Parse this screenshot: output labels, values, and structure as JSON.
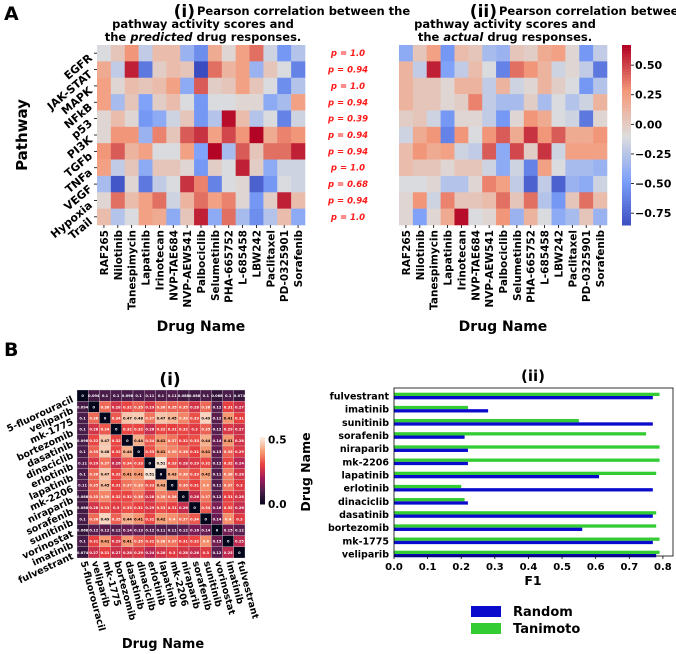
{
  "panel_a": {
    "label": "A",
    "colors": {
      "cmap": [
        "#3b4cc0",
        "#7b9ff9",
        "#dddddd",
        "#f49a7b",
        "#b40426"
      ]
    },
    "chart_data": [
      {
        "type": "heatmap",
        "numeral": "(i)",
        "title_lines": [
          "Pearson correlation between the",
          "pathway activity scores and"
        ],
        "title_line3": {
          "pre": "the ",
          "em": "predicted",
          "post": " drug responses."
        },
        "xlabel": "Drug Name",
        "ylabel": "Pathway",
        "rows": [
          "EGFR",
          "JAK-STAT",
          "MAPK",
          "NFkB",
          "p53",
          "PI3K",
          "TGFb",
          "TNFa",
          "VEGF",
          "Hypoxia",
          "Trail"
        ],
        "cols": [
          "RAF265",
          "Nilotinib",
          "Tanespimycin",
          "Lapatinib",
          "Irinotecan",
          "NVP-TAE684",
          "NVP-AEW541",
          "Palbociclib",
          "Selumetinib",
          "PHA-665752",
          "L-685458",
          "LBW242",
          "Paclitaxel",
          "PD-0325901",
          "Sorafenib"
        ],
        "values": [
          [
            -0.1,
            0.05,
            0.3,
            -0.2,
            0.1,
            0.1,
            -0.35,
            -0.55,
            0.2,
            -0.05,
            0.25,
            0.4,
            -0.15,
            -0.5,
            -0.25
          ],
          [
            0.2,
            -0.2,
            0.6,
            -0.65,
            0,
            0.1,
            0.05,
            -0.85,
            0.4,
            0.15,
            0.25,
            -0.35,
            0.05,
            -0.1,
            -0.6
          ],
          [
            0.25,
            -0.05,
            0.1,
            0.05,
            0.1,
            0.25,
            -0.4,
            0.45,
            0,
            0.05,
            0.25,
            0.05,
            -0.1,
            -0.55,
            -0.25
          ],
          [
            0.25,
            -0.3,
            0.05,
            -0.45,
            0,
            0.1,
            -0.1,
            -0.5,
            -0.1,
            -0.1,
            -0.05,
            -0.05,
            -0.4,
            -0.3,
            0.25
          ],
          [
            -0.05,
            0.1,
            -0.05,
            -0.5,
            -0.4,
            -0.15,
            0.05,
            -0.5,
            -0.25,
            0.65,
            0.1,
            -0.25,
            -0.1,
            -0.6,
            -0.15
          ],
          [
            -0.05,
            0.3,
            0.3,
            -0.35,
            0.35,
            0.05,
            0.45,
            0.55,
            0.25,
            0.5,
            0.3,
            0.75,
            0.2,
            0.35,
            0.3
          ],
          [
            0.3,
            0.45,
            0.15,
            0.25,
            -0.1,
            -0.1,
            0.25,
            -0.45,
            0.75,
            -0.3,
            0.45,
            0.05,
            0.4,
            0.4,
            0.6
          ],
          [
            0.25,
            -0.2,
            0.05,
            -0.4,
            0.05,
            0.05,
            -0.05,
            -0.5,
            0,
            -0.1,
            0.6,
            0,
            -0.4,
            -0.15,
            -0.15
          ],
          [
            -0.3,
            -0.8,
            -0.05,
            -0.65,
            -0.2,
            -0.1,
            0.55,
            0.35,
            -0.6,
            -0.1,
            -0.05,
            -0.75,
            -0.5,
            -0.1,
            -0.15
          ],
          [
            -0.05,
            0.4,
            0.1,
            0.25,
            0.4,
            -0.15,
            0.15,
            0.4,
            0.25,
            0.35,
            -0.05,
            -0.5,
            0,
            0.6,
            0.1
          ],
          [
            0.1,
            -0.25,
            -0.1,
            0.25,
            0.2,
            -0.4,
            0.05,
            0.6,
            -0.4,
            0.4,
            -0.3,
            -0.55,
            -0.25,
            0.1,
            -0.4
          ]
        ],
        "vmin": -0.85,
        "vmax": 0.67
      },
      {
        "type": "heatmap",
        "numeral": "(ii)",
        "title_lines": [
          "Pearson correlation between the",
          "pathway activity scores and"
        ],
        "title_line3": {
          "pre": "the ",
          "em": "actual",
          "post": " drug responses."
        },
        "xlabel": "Drug Name",
        "rows": [
          "EGFR",
          "JAK-STAT",
          "MAPK",
          "NFkB",
          "p53",
          "PI3K",
          "TGFb",
          "TNFa",
          "VEGF",
          "Hypoxia",
          "Trail"
        ],
        "cols": [
          "RAF265",
          "Nilotinib",
          "Tanespimycin",
          "Lapatinib",
          "Irinotecan",
          "NVP-TAE684",
          "NVP-AEW541",
          "Palbociclib",
          "Selumetinib",
          "PHA-665752",
          "L-685458",
          "LBW242",
          "Paclitaxel",
          "PD-0325901",
          "Sorafenib"
        ],
        "values": [
          [
            -0.4,
            0.05,
            0.25,
            -0.5,
            0.1,
            0.05,
            -0.3,
            -0.35,
            0.05,
            0,
            0.2,
            0.25,
            -0.05,
            -0.5,
            -0.2
          ],
          [
            0.15,
            -0.2,
            0.6,
            -0.45,
            -0.2,
            0.1,
            -0.1,
            -0.6,
            0.4,
            0.3,
            0.15,
            -0.15,
            -0.05,
            -0.2,
            -0.65
          ],
          [
            0.15,
            0.05,
            0.05,
            -0.05,
            0.15,
            0.15,
            -0.2,
            0.15,
            -0.15,
            -0.05,
            0.15,
            0,
            -0.1,
            -0.5,
            -0.25
          ],
          [
            0.15,
            0.05,
            0.05,
            -0.05,
            0,
            0.35,
            -0.2,
            -0.3,
            -0.3,
            0,
            -0.3,
            -0.1,
            -0.25,
            -0.15,
            0.15
          ],
          [
            0,
            0.05,
            -0.15,
            -0.5,
            -0.05,
            -0.05,
            -0.2,
            -0.5,
            -0.05,
            0.3,
            0.2,
            -0.1,
            -0.15,
            -0.65,
            -0.05
          ],
          [
            -0.15,
            0.2,
            0.3,
            -0.6,
            0.3,
            -0.1,
            0.3,
            0.45,
            0.2,
            0.55,
            0.3,
            0.45,
            0.2,
            0.2,
            0.3
          ],
          [
            0.1,
            0.3,
            0.2,
            0.25,
            -0.15,
            -0.2,
            0.45,
            -0.4,
            0.5,
            0,
            0.55,
            -0.15,
            0.25,
            0.25,
            0.25
          ],
          [
            0.1,
            0.05,
            0.05,
            -0.05,
            0.05,
            0.05,
            -0.15,
            -0.4,
            -0.15,
            -0.6,
            0.25,
            -0.1,
            -0.3,
            -0.3,
            -0.35
          ],
          [
            -0.1,
            -0.1,
            -0.05,
            -0.25,
            -0.25,
            -0.05,
            0.35,
            0.25,
            -0.2,
            -0.75,
            -0.2,
            -0.75,
            -0.35,
            -0.4,
            -0.15
          ],
          [
            -0.05,
            0.3,
            -0.15,
            0.35,
            0.05,
            0.05,
            0.1,
            0.4,
            0.05,
            0.4,
            -0.25,
            -0.5,
            0.05,
            0.4,
            0.1
          ],
          [
            -0.05,
            -0.45,
            -0.05,
            0.2,
            0.65,
            -0.1,
            -0.05,
            0.3,
            -0.35,
            0.15,
            -0.1,
            -0.4,
            -0.3,
            0.05,
            -0.35
          ]
        ],
        "vmin": -0.85,
        "vmax": 0.67,
        "colorbar_ticks": [
          0.5,
          0.25,
          0.0,
          -0.25,
          -0.5,
          -0.75
        ],
        "colorbar_tick_labels": [
          "0.50",
          "0.25",
          "0.00",
          "−0.25",
          "−0.50",
          "−0.75"
        ]
      }
    ],
    "p_values": [
      "p = 1.0",
      "p = 0.94",
      "p = 1.0",
      "p = 0.94",
      "p = 0.39",
      "p = 0.94",
      "p = 0.94",
      "p = 1.0",
      "p = 0.68",
      "p = 0.94",
      "p = 1.0"
    ]
  },
  "panel_b": {
    "label": "B",
    "chart_data": [
      {
        "type": "heatmap",
        "title": "(i)",
        "xlabel": "Drug Name",
        "drugs": [
          "5-fluorouracil",
          "veliparib",
          "mk-1775",
          "bortezomib",
          "dasatinib",
          "dinaciclib",
          "erlotinib",
          "lapatinib",
          "mk-2206",
          "niraparib",
          "sorafenib",
          "sunitinib",
          "vorinostat",
          "imatinib",
          "fulvestrant"
        ],
        "values": [
          [
            0,
            0.094,
            0.1,
            0.1,
            0.098,
            0.1,
            0.11,
            0.1,
            0.11,
            0.088,
            0.088,
            0.1,
            0.068,
            0.1,
            0.074
          ],
          [
            0.094,
            0,
            0.36,
            0.28,
            0.32,
            0.35,
            0.29,
            0.36,
            0.35,
            0.35,
            0.28,
            0.36,
            0.12,
            0.31,
            0.27
          ],
          [
            0.1,
            0.36,
            0,
            0.34,
            0.47,
            0.48,
            0.37,
            0.47,
            0.45,
            0.39,
            0.33,
            0.49,
            0.12,
            0.41,
            0.31
          ],
          [
            0.1,
            0.28,
            0.34,
            0,
            0.32,
            0.32,
            0.26,
            0.32,
            0.31,
            0.32,
            0.3,
            0.35,
            0.12,
            0.29,
            0.27
          ],
          [
            0.098,
            0.32,
            0.47,
            0.32,
            0,
            0.44,
            0.34,
            0.41,
            0.37,
            0.32,
            0.33,
            0.44,
            0.14,
            0.41,
            0.28
          ],
          [
            0.1,
            0.35,
            0.48,
            0.32,
            0.44,
            0,
            0.33,
            0.41,
            0.39,
            0.36,
            0.31,
            0.41,
            0.13,
            0.35,
            0.29
          ],
          [
            0.11,
            0.29,
            0.37,
            0.26,
            0.34,
            0.33,
            0,
            0.51,
            0.33,
            0.28,
            0.29,
            0.32,
            0.12,
            0.32,
            0.24
          ],
          [
            0.1,
            0.36,
            0.47,
            0.32,
            0.41,
            0.41,
            0.51,
            0,
            0.43,
            0.38,
            0.33,
            0.42,
            0.11,
            0.38,
            0.28
          ],
          [
            0.11,
            0.35,
            0.45,
            0.31,
            0.37,
            0.39,
            0.33,
            0.43,
            0,
            0.36,
            0.31,
            0.4,
            0.11,
            0.37,
            0.3
          ],
          [
            0.088,
            0.35,
            0.39,
            0.32,
            0.32,
            0.36,
            0.28,
            0.38,
            0.36,
            0,
            0.26,
            0.37,
            0.12,
            0.31,
            0.28
          ],
          [
            0.088,
            0.28,
            0.33,
            0.3,
            0.33,
            0.31,
            0.29,
            0.33,
            0.31,
            0.26,
            0,
            0.34,
            0.16,
            0.32,
            0.26
          ],
          [
            0.1,
            0.36,
            0.49,
            0.35,
            0.44,
            0.41,
            0.32,
            0.42,
            0.4,
            0.37,
            0.34,
            0,
            0.14,
            0.4,
            0.3
          ],
          [
            0.068,
            0.12,
            0.12,
            0.12,
            0.14,
            0.13,
            0.12,
            0.11,
            0.11,
            0.12,
            0.16,
            0.14,
            0,
            0.15,
            0.12
          ],
          [
            0.1,
            0.31,
            0.41,
            0.29,
            0.41,
            0.35,
            0.32,
            0.38,
            0.37,
            0.31,
            0.32,
            0.4,
            0.15,
            0,
            0.25
          ],
          [
            0.074,
            0.27,
            0.31,
            0.27,
            0.28,
            0.29,
            0.24,
            0.28,
            0.3,
            0.28,
            0.26,
            0.3,
            0.12,
            0.25,
            0
          ]
        ],
        "vmin": 0,
        "vmax": 0.52,
        "colorbar_ticks": [
          0.5,
          0.0
        ],
        "colorbar_tick_labels": [
          "0.5",
          "0.0"
        ]
      },
      {
        "type": "bar",
        "orientation": "horizontal",
        "title": "(ii)",
        "xlabel": "F1",
        "ylabel": "Drug Name",
        "categories": [
          "fulvestrant",
          "imatinib",
          "sunitinib",
          "sorafenib",
          "niraparib",
          "mk-2206",
          "lapatinib",
          "erlotinib",
          "dinaciclib",
          "dasatinib",
          "bortezomib",
          "mk-1775",
          "veliparib"
        ],
        "series": [
          {
            "name": "Random",
            "color": "#0a0acc",
            "values": [
              0.77,
              0.28,
              0.77,
              0.21,
              0.22,
              0.22,
              0.61,
              0.77,
              0.22,
              0.77,
              0.56,
              0.77,
              0.78
            ]
          },
          {
            "name": "Tanimoto",
            "color": "#33cc33",
            "values": [
              0.79,
              0.22,
              0.55,
              0.75,
              0.79,
              0.79,
              0.78,
              0.2,
              0.21,
              0.78,
              0.78,
              0.79,
              0.79
            ]
          }
        ],
        "xticks": [
          0.0,
          0.1,
          0.2,
          0.3,
          0.4,
          0.5,
          0.6,
          0.7,
          0.8
        ],
        "xtick_labels": [
          "0.0",
          "0.1",
          "0.2",
          "0.3",
          "0.4",
          "0.5",
          "0.6",
          "0.7",
          "0.8"
        ],
        "xlim": [
          0,
          0.83
        ],
        "legend_placement": "bottom"
      }
    ]
  }
}
